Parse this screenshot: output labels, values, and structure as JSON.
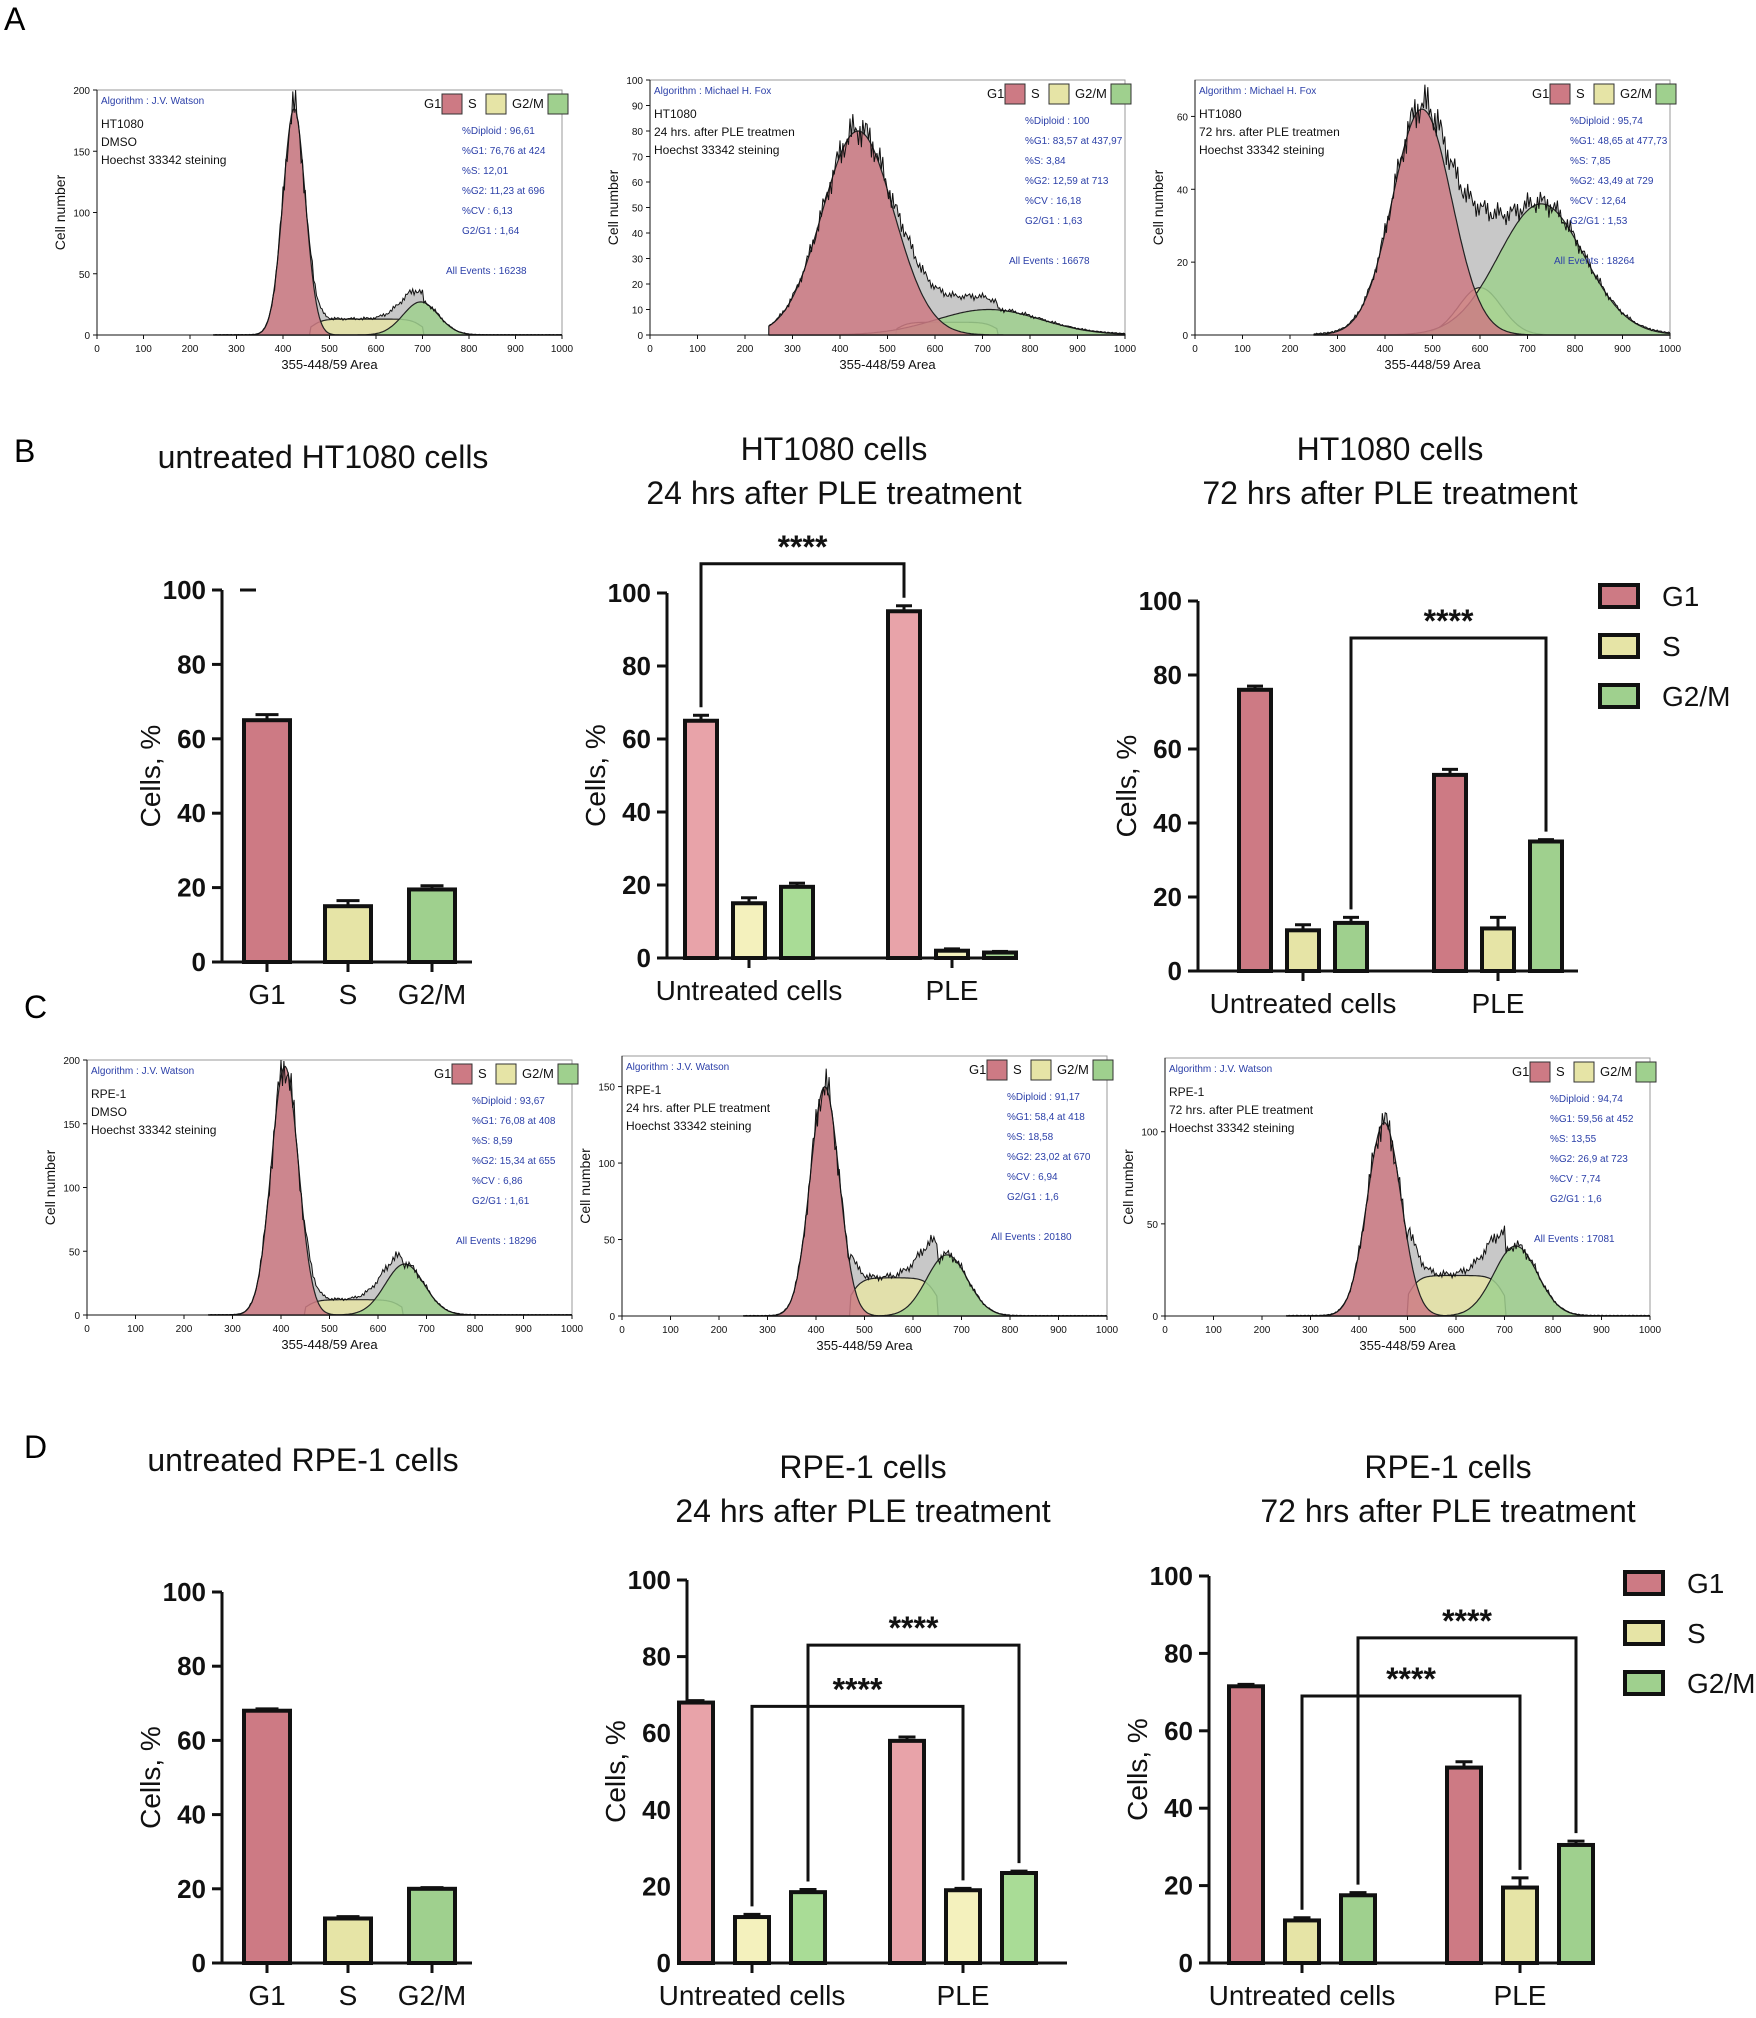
{
  "colors": {
    "g1": "#cd7a84",
    "s": "#e6e4a6",
    "g2m": "#9fd08e",
    "g1_light": "#e8a3a9",
    "s_light": "#f4f1bd",
    "g2m_light": "#a9dc96",
    "histo_gray": "#c8c8c8",
    "info_blue": "#2b3fa8"
  },
  "chart_data": [
    {
      "panel": "A",
      "type": "histogram",
      "algorithm": "Algorithm : J.V. Watson",
      "info_lines": [
        "HT1080",
        "DMSO",
        "Hoechst 33342 steining"
      ],
      "stats": [
        "%Diploid : 96,61",
        "%G1: 76,76 at 424",
        "%S: 12,01",
        "%G2: 11,23 at 696",
        "%CV : 6,13",
        "G2/G1 : 1,64"
      ],
      "events": "All Events : 16238",
      "legend": [
        "G1",
        "S",
        "G2/M"
      ],
      "xlabel": "355-448/59 Area",
      "ylabel": "Cell number",
      "xticks": [
        "0",
        "100",
        "200",
        "300",
        "400",
        "500",
        "600",
        "700",
        "800",
        "900",
        "1000"
      ],
      "xlim": [
        0,
        1000
      ],
      "yticks": [
        "0",
        "50",
        "100",
        "150",
        "200"
      ],
      "ylim": [
        0,
        200
      ],
      "g1": {
        "mean": 424,
        "sd": 24,
        "peak": 185
      },
      "s": {
        "from": 460,
        "to": 700,
        "level": 13
      },
      "g2": {
        "mean": 696,
        "sd": 38,
        "peak": 27
      }
    },
    {
      "panel": "A",
      "type": "histogram",
      "algorithm": "Algorithm : Michael H. Fox",
      "info_lines": [
        "HT1080",
        "24 hrs. after PLE treatmen",
        "Hoechst 33342 steining"
      ],
      "stats": [
        "%Diploid : 100",
        "%G1: 83,57 at 437,97",
        "%S: 3,84",
        "%G2: 12,59 at 713",
        "%CV : 16,18",
        "G2/G1 : 1,63"
      ],
      "events": "All Events : 16678",
      "legend": [
        "G1",
        "S",
        "G2/M"
      ],
      "xlabel": "355-448/59 Area",
      "ylabel": "Cell number",
      "xticks": [
        "0",
        "100",
        "200",
        "300",
        "400",
        "500",
        "600",
        "700",
        "800",
        "900",
        "1000"
      ],
      "xlim": [
        0,
        1000
      ],
      "yticks": [
        "0",
        "10",
        "20",
        "30",
        "40",
        "50",
        "60",
        "70",
        "80",
        "90",
        "100"
      ],
      "ylim": [
        0,
        100
      ],
      "g1": {
        "mean": 438,
        "sd": 75,
        "peak": 80
      },
      "s": {
        "from": 520,
        "to": 730,
        "level": 5
      },
      "g2": {
        "mean": 713,
        "sd": 110,
        "peak": 10
      }
    },
    {
      "panel": "A",
      "type": "histogram",
      "algorithm": "Algorithm : Michael H. Fox",
      "info_lines": [
        "HT1080",
        "72 hrs. after PLE treatmen",
        "Hoechst 33342 steining"
      ],
      "stats": [
        "%Diploid : 95,74",
        "%G1: 48,65 at 477,73",
        "%S: 7,85",
        "%G2: 43,49 at 729",
        "%CV : 12,64",
        "G2/G1 : 1,53"
      ],
      "events": "All Events : 18264",
      "legend": [
        "G1",
        "S",
        "G2/M"
      ],
      "xlabel": "355-448/59 Area",
      "ylabel": "Cell number",
      "xticks": [
        "0",
        "100",
        "200",
        "300",
        "400",
        "500",
        "600",
        "700",
        "800",
        "900",
        "1000"
      ],
      "xlim": [
        0,
        1000
      ],
      "yticks": [
        "0",
        "20",
        "40",
        "60"
      ],
      "ylim": [
        0,
        70
      ],
      "g1": {
        "mean": 478,
        "sd": 62,
        "peak": 62
      },
      "s": {
        "mean": 600,
        "sd": 45,
        "peak": 13
      },
      "g2": {
        "mean": 729,
        "sd": 90,
        "peak": 36
      }
    },
    {
      "panel": "B",
      "type": "bar",
      "title_lines": [
        "untreated HT1080 cells"
      ],
      "ylabel": "Cells, %",
      "ylim": [
        0,
        100
      ],
      "yticks": [
        "0",
        "20",
        "40",
        "60",
        "80",
        "100"
      ],
      "group_labels": [
        "G1",
        "S",
        "G2/M"
      ],
      "series": [
        {
          "name": "G1",
          "value": 65,
          "err": 1.5
        },
        {
          "name": "S",
          "value": 15,
          "err": 1.5
        },
        {
          "name": "G2/M",
          "value": 19.5,
          "err": 1
        }
      ],
      "significance": []
    },
    {
      "panel": "B",
      "type": "bar",
      "title_lines": [
        "HT1080 cells",
        "24 hrs after PLE treatment"
      ],
      "ylabel": "Cells, %",
      "ylim": [
        0,
        100
      ],
      "yticks": [
        "0",
        "20",
        "40",
        "60",
        "80",
        "100"
      ],
      "categories": [
        "Untreated cells",
        "PLE"
      ],
      "series": [
        {
          "name": "G1",
          "values": [
            65,
            95
          ],
          "err": [
            1.5,
            1.5
          ]
        },
        {
          "name": "S",
          "values": [
            15,
            2
          ],
          "err": [
            1.5,
            0.5
          ]
        },
        {
          "name": "G2/M",
          "values": [
            19.5,
            1.5
          ],
          "err": [
            1,
            0.3
          ]
        }
      ],
      "significance": [
        {
          "label": "****",
          "from": [
            0,
            0
          ],
          "to": [
            1,
            0
          ],
          "top": 108
        }
      ]
    },
    {
      "panel": "B",
      "type": "bar",
      "title_lines": [
        "HT1080 cells",
        "72 hrs after PLE treatment"
      ],
      "ylabel": "Cells, %",
      "ylim": [
        0,
        100
      ],
      "yticks": [
        "0",
        "20",
        "40",
        "60",
        "80",
        "100"
      ],
      "categories": [
        "Untreated cells",
        "PLE"
      ],
      "series": [
        {
          "name": "G1",
          "values": [
            76,
            53
          ],
          "err": [
            1,
            1.5
          ]
        },
        {
          "name": "S",
          "values": [
            11,
            11.5
          ],
          "err": [
            1.5,
            3
          ]
        },
        {
          "name": "G2/M",
          "values": [
            13,
            35
          ],
          "err": [
            1.5,
            0.5
          ]
        }
      ],
      "legend": [
        "G1",
        "S",
        "G2/M"
      ],
      "significance": [
        {
          "label": "****",
          "from": [
            0,
            2
          ],
          "to": [
            1,
            2
          ],
          "top": 90
        }
      ]
    },
    {
      "panel": "C",
      "type": "histogram",
      "algorithm": "Algorithm : J.V. Watson",
      "info_lines": [
        "RPE-1",
        "DMSO",
        "Hoechst 33342 steining"
      ],
      "stats": [
        "%Diploid : 93,67",
        "%G1: 76,08 at 408",
        "%S: 8,59",
        "%G2: 15,34 at 655",
        "%CV : 6,86",
        "G2/G1 : 1,61"
      ],
      "events": "All Events : 18296",
      "legend": [
        "G1",
        "S",
        "G2/M"
      ],
      "xlabel": "355-448/59 Area",
      "ylabel": "Cell number",
      "xticks": [
        "0",
        "100",
        "200",
        "300",
        "400",
        "500",
        "600",
        "700",
        "800",
        "900",
        "1000"
      ],
      "xlim": [
        0,
        1000
      ],
      "yticks": [
        "0",
        "50",
        "100",
        "150",
        "200"
      ],
      "ylim": [
        0,
        200
      ],
      "g1": {
        "mean": 408,
        "sd": 28,
        "peak": 195
      },
      "s": {
        "from": 450,
        "to": 650,
        "level": 12
      },
      "g2": {
        "mean": 655,
        "sd": 40,
        "peak": 40
      }
    },
    {
      "panel": "C",
      "type": "histogram",
      "algorithm": "Algorithm : J.V. Watson",
      "info_lines": [
        "RPE-1",
        "24 hrs. after PLE treatment",
        "Hoechst 33342 steining"
      ],
      "stats": [
        "%Diploid : 91,17",
        "%G1: 58,4 at 418",
        "%S: 18,58",
        "%G2: 23,02 at 670",
        "%CV : 6,94",
        "G2/G1 : 1,6"
      ],
      "events": "All Events : 20180",
      "legend": [
        "G1",
        "S",
        "G2/M"
      ],
      "xlabel": "355-448/59 Area",
      "ylabel": "Cell number",
      "xticks": [
        "0",
        "100",
        "200",
        "300",
        "400",
        "500",
        "600",
        "700",
        "800",
        "900",
        "1000"
      ],
      "xlim": [
        0,
        1000
      ],
      "yticks": [
        "0",
        "50",
        "100",
        "150"
      ],
      "ylim": [
        0,
        170
      ],
      "g1": {
        "mean": 418,
        "sd": 30,
        "peak": 150
      },
      "s": {
        "from": 470,
        "to": 650,
        "level": 25
      },
      "g2": {
        "mean": 670,
        "sd": 42,
        "peak": 40
      }
    },
    {
      "panel": "C",
      "type": "histogram",
      "algorithm": "Algorithm : J.V. Watson",
      "info_lines": [
        "RPE-1",
        "72 hrs. after PLE treatment",
        "Hoechst 33342 steining"
      ],
      "stats": [
        "%Diploid : 94,74",
        "%G1: 59,56 at 452",
        "%S: 13,55",
        "%G2: 26,9 at 723",
        "%CV : 7,74",
        "G2/G1 : 1,6"
      ],
      "events": "All Events : 17081",
      "legend": [
        "G1",
        "S",
        "G2/M"
      ],
      "xlabel": "355-448/59 Area",
      "ylabel": "Cell number",
      "xticks": [
        "0",
        "100",
        "200",
        "300",
        "400",
        "500",
        "600",
        "700",
        "800",
        "900",
        "1000"
      ],
      "xlim": [
        0,
        1000
      ],
      "yticks": [
        "0",
        "50",
        "100"
      ],
      "ylim": [
        0,
        140
      ],
      "g1": {
        "mean": 452,
        "sd": 35,
        "peak": 105
      },
      "s": {
        "from": 500,
        "to": 700,
        "level": 22
      },
      "g2": {
        "mean": 723,
        "sd": 45,
        "peak": 38
      }
    },
    {
      "panel": "D",
      "type": "bar",
      "title_lines": [
        "untreated RPE-1  cells"
      ],
      "ylabel": "Cells, %",
      "ylim": [
        0,
        100
      ],
      "yticks": [
        "0",
        "20",
        "40",
        "60",
        "80",
        "100"
      ],
      "group_labels": [
        "G1",
        "S",
        "G2/M"
      ],
      "series": [
        {
          "name": "G1",
          "value": 68,
          "err": 0.5
        },
        {
          "name": "S",
          "value": 12,
          "err": 0.5
        },
        {
          "name": "G2/M",
          "value": 20,
          "err": 0.3
        }
      ],
      "significance": []
    },
    {
      "panel": "D",
      "type": "bar",
      "title_lines": [
        "RPE-1 cells",
        "24 hrs after PLE treatment"
      ],
      "ylabel": "Cells, %",
      "ylim": [
        0,
        100
      ],
      "yticks": [
        "0",
        "20",
        "40",
        "60",
        "80",
        "100"
      ],
      "categories": [
        "Untreated cells",
        "PLE"
      ],
      "series": [
        {
          "name": "G1",
          "values": [
            68,
            58
          ],
          "err": [
            0.5,
            1
          ]
        },
        {
          "name": "S",
          "values": [
            12,
            19
          ],
          "err": [
            0.7,
            0.5
          ]
        },
        {
          "name": "G2/M",
          "values": [
            18.5,
            23.5
          ],
          "err": [
            0.7,
            0.5
          ]
        }
      ],
      "significance": [
        {
          "label": "****",
          "from": [
            0,
            2
          ],
          "to": [
            1,
            2
          ],
          "top": 83
        },
        {
          "label": "****",
          "from": [
            0,
            1
          ],
          "to": [
            1,
            1
          ],
          "top": 67
        }
      ]
    },
    {
      "panel": "D",
      "type": "bar",
      "title_lines": [
        "RPE-1 cells",
        "72 hrs after PLE treatment"
      ],
      "ylabel": "Cells, %",
      "ylim": [
        0,
        100
      ],
      "yticks": [
        "0",
        "20",
        "40",
        "60",
        "80",
        "100"
      ],
      "categories": [
        "Untreated cells",
        "PLE"
      ],
      "series": [
        {
          "name": "G1",
          "values": [
            71.5,
            50.5
          ],
          "err": [
            0.5,
            1.5
          ]
        },
        {
          "name": "S",
          "values": [
            11,
            19.5
          ],
          "err": [
            0.7,
            2.5
          ]
        },
        {
          "name": "G2/M",
          "values": [
            17.5,
            30.5
          ],
          "err": [
            0.7,
            1
          ]
        }
      ],
      "legend": [
        "G1",
        "S",
        "G2/M"
      ],
      "significance": [
        {
          "label": "****",
          "from": [
            0,
            2
          ],
          "to": [
            1,
            2
          ],
          "top": 84
        },
        {
          "label": "****",
          "from": [
            0,
            1
          ],
          "to": [
            1,
            1
          ],
          "top": 69
        }
      ]
    }
  ],
  "panel_letters": [
    "A",
    "B",
    "C",
    "D"
  ]
}
